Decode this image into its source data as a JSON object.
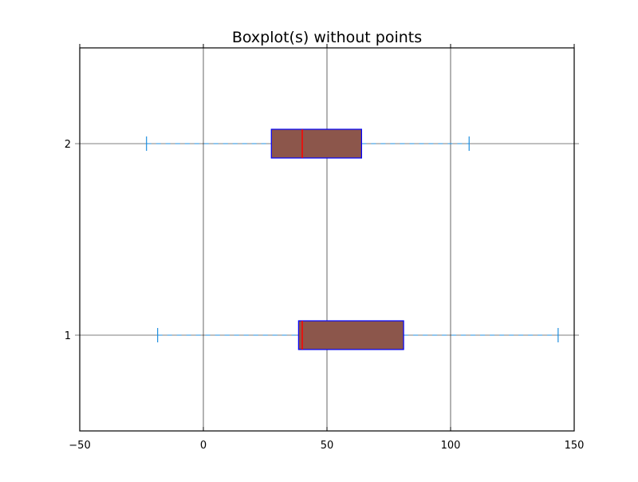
{
  "chart_data": {
    "type": "boxplot",
    "orientation": "horizontal",
    "title": "Boxplot(s) without points",
    "xlabel": "",
    "ylabel": "",
    "xlim": [
      -50,
      150
    ],
    "ylim": [
      0.5,
      2.5
    ],
    "x_ticks": [
      -50,
      0,
      50,
      100,
      150
    ],
    "x_tick_labels": [
      "−50",
      "0",
      "50",
      "100",
      "150"
    ],
    "y_ticks": [
      1,
      2
    ],
    "y_tick_labels": [
      "1",
      "2"
    ],
    "grid": true,
    "show_points": false,
    "boxes": [
      {
        "position": 1,
        "whisker_low": -18.5,
        "q1": 38.5,
        "median": 40,
        "q3": 81,
        "whisker_high": 143.5
      },
      {
        "position": 2,
        "whisker_low": -23,
        "q1": 27.5,
        "median": 40,
        "q3": 64,
        "whisker_high": 107.5
      }
    ],
    "colors": {
      "box_fill": "#8c564b",
      "box_edge": "#0000ff",
      "median": "#ff0000",
      "whisker": "#1f8fdf",
      "grid": "#000000",
      "axes": "#000000"
    }
  }
}
